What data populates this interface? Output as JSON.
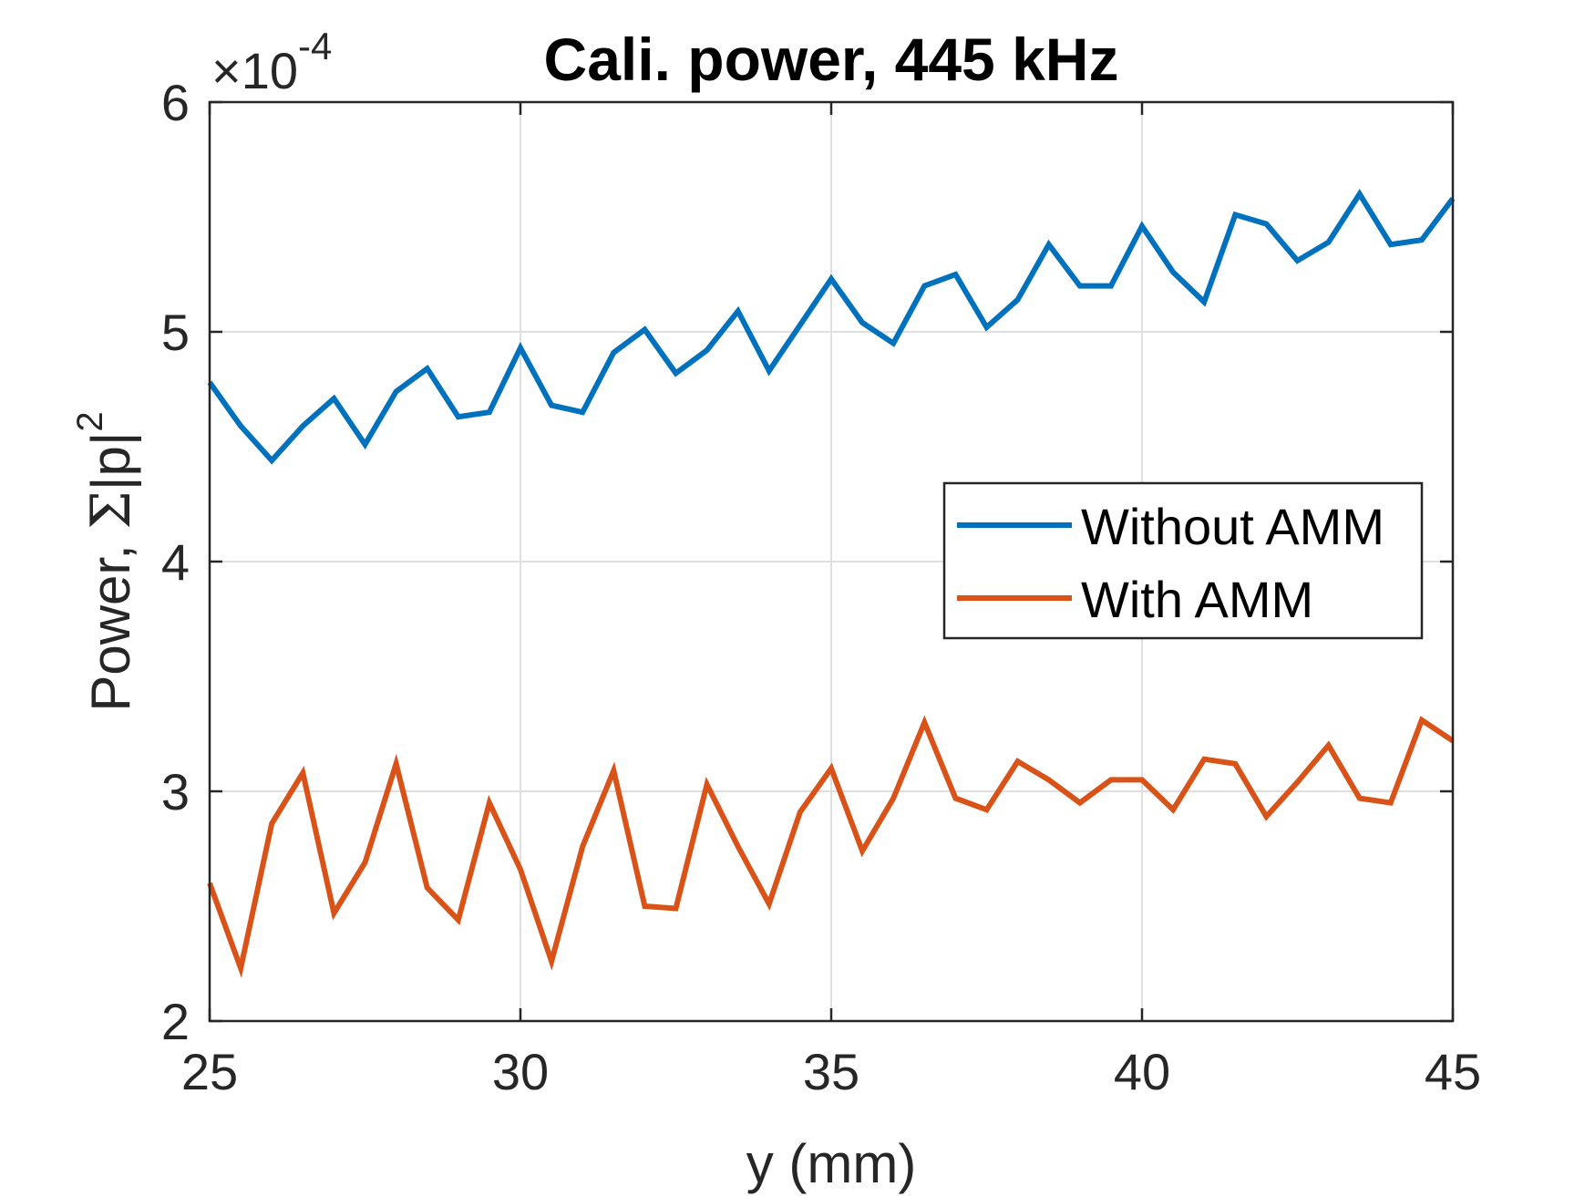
{
  "chart_data": {
    "type": "line",
    "title": "Cali. power, 445 kHz",
    "xlabel": "y (mm)",
    "ylabel_main": "Power, ",
    "ylabel_sigma": "Σ",
    "ylabel_tail": "|p|",
    "ylabel_sup": "2",
    "y_exponent_prefix": "×10",
    "y_exponent_power": "-4",
    "xlim": [
      25,
      45
    ],
    "ylim": [
      2,
      6
    ],
    "xticks": [
      25,
      30,
      35,
      40,
      45
    ],
    "yticks": [
      2,
      3,
      4,
      5,
      6
    ],
    "grid": true,
    "legend_position": "right",
    "x": [
      25,
      25.5,
      26,
      26.5,
      27,
      27.5,
      28,
      28.5,
      29,
      29.5,
      30,
      30.5,
      31,
      31.5,
      32,
      32.5,
      33,
      33.5,
      34,
      34.5,
      35,
      35.5,
      36,
      36.5,
      37,
      37.5,
      38,
      38.5,
      39,
      39.5,
      40,
      40.5,
      41,
      41.5,
      42,
      42.5,
      43,
      43.5,
      44,
      44.5,
      45
    ],
    "series": [
      {
        "name": "Without AMM",
        "color": "#0072BD",
        "values": [
          4.78,
          4.59,
          4.44,
          4.59,
          4.71,
          4.51,
          4.74,
          4.84,
          4.63,
          4.65,
          4.93,
          4.68,
          4.65,
          4.91,
          5.01,
          4.82,
          4.92,
          5.09,
          4.83,
          5.03,
          5.23,
          5.04,
          4.95,
          5.2,
          5.25,
          5.02,
          5.14,
          5.38,
          5.2,
          5.2,
          5.46,
          5.26,
          5.13,
          5.51,
          5.47,
          5.31,
          5.39,
          5.6,
          5.38,
          5.4,
          5.58
        ]
      },
      {
        "name": "With AMM",
        "color": "#D95319",
        "values": [
          2.6,
          2.23,
          2.86,
          3.08,
          2.47,
          2.69,
          3.12,
          2.58,
          2.44,
          2.95,
          2.66,
          2.26,
          2.76,
          3.09,
          2.5,
          2.49,
          3.03,
          2.76,
          2.51,
          2.91,
          3.1,
          2.74,
          2.97,
          3.3,
          2.97,
          2.92,
          3.13,
          3.05,
          2.95,
          3.05,
          3.05,
          2.92,
          3.14,
          3.12,
          2.89,
          3.04,
          3.2,
          2.97,
          2.95,
          3.31,
          3.22
        ]
      }
    ]
  }
}
